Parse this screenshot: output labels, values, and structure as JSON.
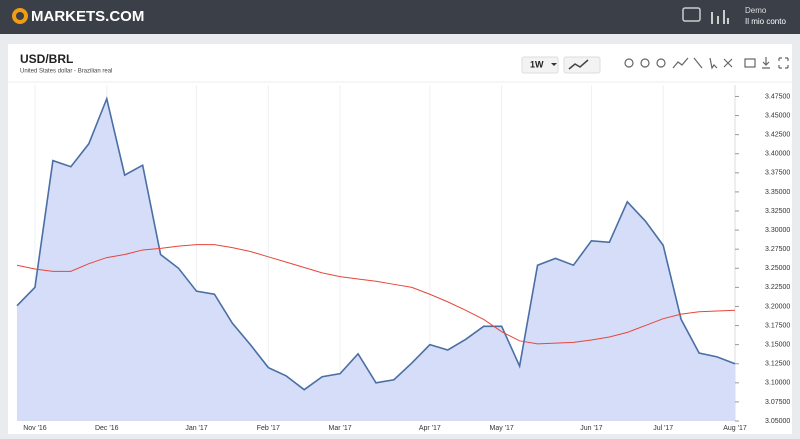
{
  "header": {
    "logo": "MARKETS.COM",
    "user": "Demo",
    "account": "Il mio conto"
  },
  "toolbar": {
    "interval": "1W"
  },
  "chart_data": {
    "type": "area",
    "title": "USD/BRL",
    "subtitle": "United States dollar - Brazilian real",
    "categories": [
      null,
      "Nov '16",
      null,
      null,
      null,
      "Dec '16",
      null,
      null,
      null,
      null,
      "Jan '17",
      null,
      null,
      null,
      "Feb '17",
      null,
      null,
      null,
      "Mar '17",
      null,
      null,
      null,
      null,
      "Apr '17",
      null,
      null,
      null,
      "May '17",
      null,
      null,
      null,
      null,
      "Jun '17",
      null,
      null,
      null,
      "Jul '17",
      null,
      null,
      null,
      "Aug '17"
    ],
    "series": [
      {
        "color": "#4a6fa5",
        "fill": "#d6ddf8",
        "values": [
          3.201,
          3.225,
          3.391,
          3.383,
          3.413,
          3.472,
          3.372,
          3.385,
          3.268,
          3.25,
          3.22,
          3.216,
          3.178,
          3.15,
          3.12,
          3.109,
          3.091,
          3.108,
          3.112,
          3.138,
          3.1,
          3.104,
          3.126,
          3.15,
          3.143,
          3.157,
          3.174,
          3.174,
          3.122,
          3.254,
          3.263,
          3.254,
          3.286,
          3.284,
          3.337,
          3.312,
          3.28,
          3.183,
          3.139,
          3.134,
          3.125
        ]
      },
      {
        "color": "#e8463a",
        "values": [
          3.254,
          3.249,
          3.246,
          3.246,
          3.256,
          3.264,
          3.268,
          3.274,
          3.276,
          3.279,
          3.281,
          3.281,
          3.277,
          3.272,
          3.265,
          3.258,
          3.251,
          3.244,
          3.239,
          3.236,
          3.233,
          3.229,
          3.225,
          3.216,
          3.206,
          3.195,
          3.183,
          3.167,
          3.155,
          3.151,
          3.152,
          3.153,
          3.156,
          3.16,
          3.166,
          3.175,
          3.184,
          3.19,
          3.193,
          3.194,
          3.195
        ]
      }
    ],
    "ylim": [
      3.05,
      3.49
    ],
    "yticks": [
      {
        "value": 3.05,
        "label": "3.05000"
      },
      {
        "value": 3.075,
        "label": "3.07500"
      },
      {
        "value": 3.1,
        "label": "3.10000"
      },
      {
        "value": 3.125,
        "label": "3.12500"
      },
      {
        "value": 3.15,
        "label": "3.15000"
      },
      {
        "value": 3.175,
        "label": "3.17500"
      },
      {
        "value": 3.2,
        "label": "3.20000"
      },
      {
        "value": 3.225,
        "label": "3.22500"
      },
      {
        "value": 3.25,
        "label": "3.25000"
      },
      {
        "value": 3.275,
        "label": "3.27500"
      },
      {
        "value": 3.3,
        "label": "3.30000"
      },
      {
        "value": 3.325,
        "label": "3.32500"
      },
      {
        "value": 3.35,
        "label": "3.35000"
      },
      {
        "value": 3.375,
        "label": "3.37500"
      },
      {
        "value": 3.4,
        "label": "3.40000"
      },
      {
        "value": 3.425,
        "label": "3.42500"
      },
      {
        "value": 3.45,
        "label": "3.45000"
      },
      {
        "value": 3.475,
        "label": "3.47500"
      }
    ]
  }
}
